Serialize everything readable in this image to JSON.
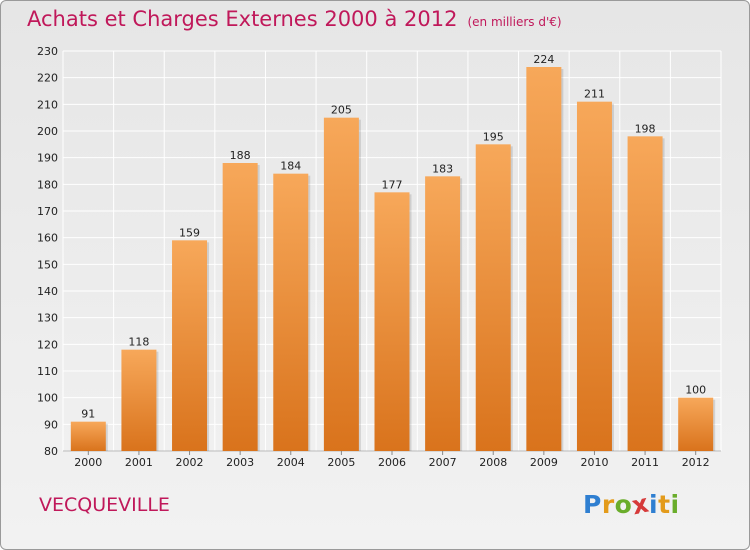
{
  "header": {
    "title": "Achats et Charges Externes 2000 à 2012",
    "subtitle": "(en milliers d'€)"
  },
  "footer": {
    "commune": "VECQUEVILLE"
  },
  "logo": {
    "letters": [
      "P",
      "r",
      "o",
      "x",
      "i",
      "t",
      "i"
    ],
    "colors": [
      "#2f7fd1",
      "#e39b1b",
      "#6aad2b",
      "#d63a3a",
      "#2f7fd1",
      "#e39b1b",
      "#6aad2b"
    ]
  },
  "colors": {
    "bar_top": "#f7a85a",
    "bar_bottom": "#d9731c",
    "grid": "#ffffff",
    "accent": "#c0185a"
  },
  "chart_data": {
    "type": "bar",
    "categories": [
      "2000",
      "2001",
      "2002",
      "2003",
      "2004",
      "2005",
      "2006",
      "2007",
      "2008",
      "2009",
      "2010",
      "2011",
      "2012"
    ],
    "values": [
      91,
      118,
      159,
      188,
      184,
      205,
      177,
      183,
      195,
      224,
      211,
      198,
      100
    ],
    "ylim": [
      80,
      230
    ],
    "yticks": [
      80,
      90,
      100,
      110,
      120,
      130,
      140,
      150,
      160,
      170,
      180,
      190,
      200,
      210,
      220,
      230
    ],
    "grid": true,
    "xlabel": "",
    "ylabel": ""
  }
}
